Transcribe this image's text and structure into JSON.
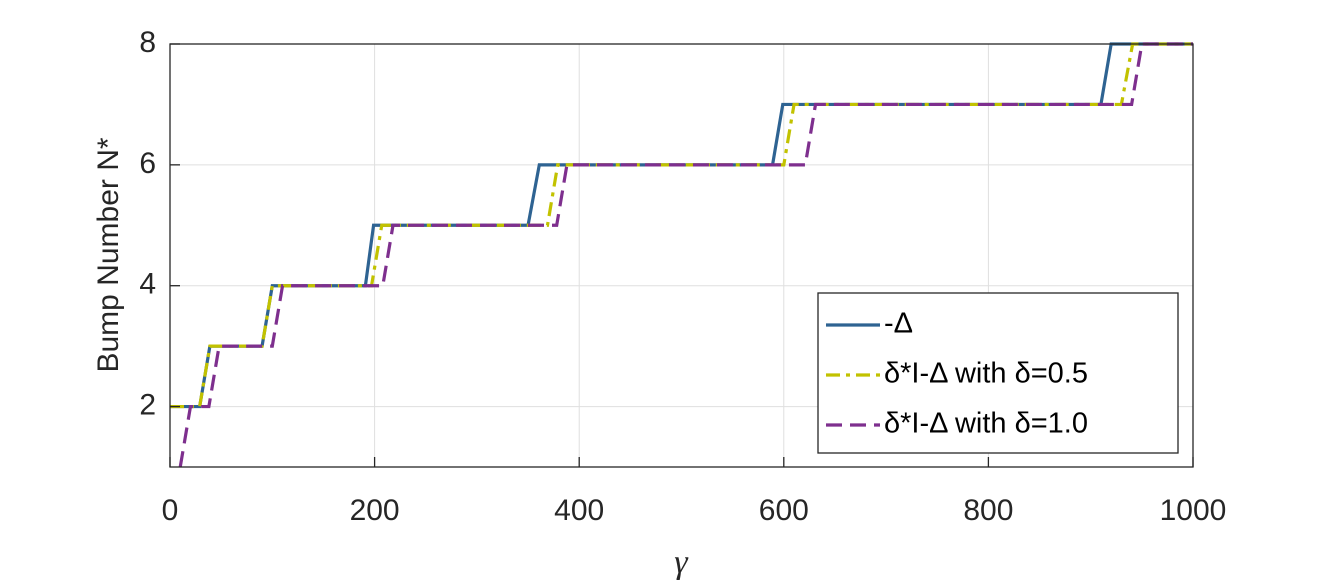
{
  "chart_data": {
    "type": "line",
    "xlabel": "γ",
    "ylabel": "Bump Number N*",
    "xlim": [
      0,
      1000
    ],
    "xticks": [
      0,
      200,
      400,
      600,
      800,
      1000
    ],
    "ylim": [
      1,
      8
    ],
    "yticks": [
      2,
      4,
      6,
      8
    ],
    "grid": true,
    "legend": "lower right",
    "series": [
      {
        "name": "-Δ",
        "color": "#2e6392",
        "style": "solid",
        "x": [
          0,
          29,
          39,
          90,
          100,
          191,
          199,
          350,
          361,
          589,
          599,
          910,
          920,
          1000
        ],
        "values": [
          2,
          2,
          3,
          3,
          4,
          4,
          5,
          5,
          6,
          6,
          7,
          7,
          8,
          8
        ]
      },
      {
        "name": "δ*I-Δ with δ=0.5",
        "color": "#c2c200",
        "style": "dashdot",
        "x": [
          0,
          29,
          39,
          90,
          100,
          197,
          207,
          369,
          379,
          600,
          610,
          930,
          941,
          1000
        ],
        "values": [
          2,
          2,
          3,
          3,
          4,
          4,
          5,
          5,
          6,
          6,
          7,
          7,
          8,
          8
        ]
      },
      {
        "name": "δ*I-Δ with δ=1.0",
        "color": "#7e2f8e",
        "style": "dashed",
        "x": [
          10,
          20,
          38,
          48,
          100,
          110,
          208,
          218,
          378,
          388,
          621,
          631,
          940,
          950,
          1000
        ],
        "values": [
          1,
          2,
          2,
          3,
          3,
          4,
          4,
          5,
          5,
          6,
          6,
          7,
          7,
          8,
          8
        ]
      }
    ]
  }
}
